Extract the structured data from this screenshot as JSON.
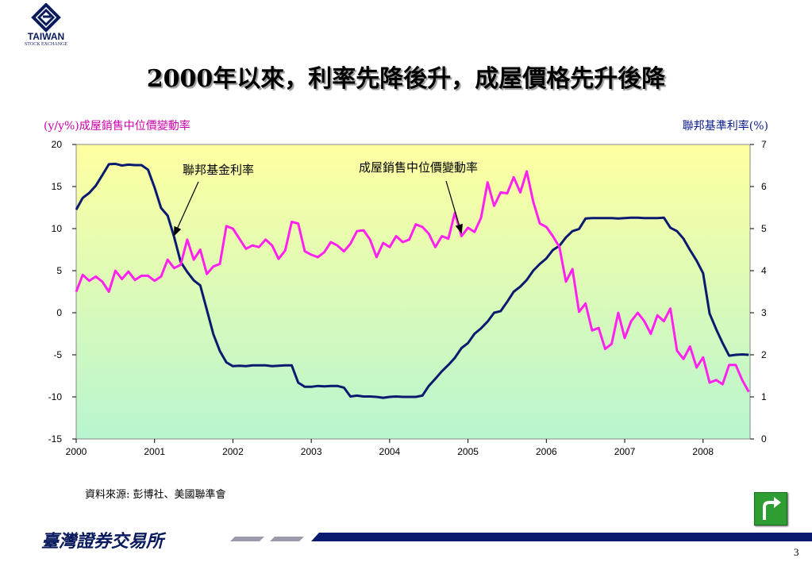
{
  "header": {
    "logo_name": "TAIWAN",
    "logo_sub": "STOCK EXCHANGE",
    "title": "2000年以來，利率先降後升，成屋價格先升後降"
  },
  "chart_data": {
    "type": "line",
    "left_axis_label": "(y/y%)成屋銷售中位價變動率",
    "right_axis_label": "聯邦基準利率(%)",
    "x_ticks": [
      "2000",
      "2001",
      "2002",
      "2003",
      "2004",
      "2005",
      "2006",
      "2007",
      "2008"
    ],
    "y_left_ticks": [
      "20",
      "15",
      "10",
      "5",
      "0",
      "-5",
      "-10",
      "-15"
    ],
    "y_right_ticks": [
      "7",
      "6",
      "5",
      "4",
      "3",
      "2",
      "1",
      "0"
    ],
    "ylim_left": [
      -15,
      20
    ],
    "ylim_right": [
      0,
      7
    ],
    "xlim": [
      2000,
      2008.6
    ],
    "annotations": [
      {
        "text": "聯邦基金利率",
        "target_series": "fed"
      },
      {
        "text": "成屋銷售中位價變動率",
        "target_series": "home"
      }
    ],
    "colors": {
      "fed": "#0a1a6e",
      "home": "#ff22ee",
      "plot_top": "#ffffa0",
      "plot_bottom": "#b8f5d0"
    },
    "series": [
      {
        "key": "fed",
        "axis": "right",
        "points": [
          [
            2000.0,
            5.45
          ],
          [
            2000.083,
            5.73
          ],
          [
            2000.167,
            5.85
          ],
          [
            2000.25,
            6.02
          ],
          [
            2000.333,
            6.27
          ],
          [
            2000.417,
            6.53
          ],
          [
            2000.5,
            6.54
          ],
          [
            2000.583,
            6.5
          ],
          [
            2000.667,
            6.52
          ],
          [
            2000.75,
            6.51
          ],
          [
            2000.833,
            6.51
          ],
          [
            2000.917,
            6.4
          ],
          [
            2001.0,
            5.98
          ],
          [
            2001.083,
            5.49
          ],
          [
            2001.167,
            5.31
          ],
          [
            2001.25,
            4.8
          ],
          [
            2001.333,
            4.21
          ],
          [
            2001.417,
            3.97
          ],
          [
            2001.5,
            3.77
          ],
          [
            2001.583,
            3.65
          ],
          [
            2001.667,
            3.07
          ],
          [
            2001.75,
            2.49
          ],
          [
            2001.833,
            2.09
          ],
          [
            2001.917,
            1.82
          ],
          [
            2002.0,
            1.73
          ],
          [
            2002.083,
            1.74
          ],
          [
            2002.167,
            1.73
          ],
          [
            2002.25,
            1.75
          ],
          [
            2002.333,
            1.75
          ],
          [
            2002.417,
            1.75
          ],
          [
            2002.5,
            1.73
          ],
          [
            2002.583,
            1.74
          ],
          [
            2002.667,
            1.75
          ],
          [
            2002.75,
            1.75
          ],
          [
            2002.833,
            1.34
          ],
          [
            2002.917,
            1.24
          ],
          [
            2003.0,
            1.24
          ],
          [
            2003.083,
            1.26
          ],
          [
            2003.167,
            1.25
          ],
          [
            2003.25,
            1.26
          ],
          [
            2003.333,
            1.26
          ],
          [
            2003.417,
            1.22
          ],
          [
            2003.5,
            1.01
          ],
          [
            2003.583,
            1.03
          ],
          [
            2003.667,
            1.01
          ],
          [
            2003.75,
            1.01
          ],
          [
            2003.833,
            1.0
          ],
          [
            2003.917,
            0.98
          ],
          [
            2004.0,
            1.0
          ],
          [
            2004.083,
            1.01
          ],
          [
            2004.167,
            1.0
          ],
          [
            2004.25,
            1.0
          ],
          [
            2004.333,
            1.0
          ],
          [
            2004.417,
            1.03
          ],
          [
            2004.5,
            1.26
          ],
          [
            2004.583,
            1.43
          ],
          [
            2004.667,
            1.61
          ],
          [
            2004.75,
            1.76
          ],
          [
            2004.833,
            1.93
          ],
          [
            2004.917,
            2.16
          ],
          [
            2005.0,
            2.28
          ],
          [
            2005.083,
            2.5
          ],
          [
            2005.167,
            2.63
          ],
          [
            2005.25,
            2.79
          ],
          [
            2005.333,
            3.0
          ],
          [
            2005.417,
            3.04
          ],
          [
            2005.5,
            3.26
          ],
          [
            2005.583,
            3.5
          ],
          [
            2005.667,
            3.62
          ],
          [
            2005.75,
            3.78
          ],
          [
            2005.833,
            4.0
          ],
          [
            2005.917,
            4.16
          ],
          [
            2006.0,
            4.29
          ],
          [
            2006.083,
            4.49
          ],
          [
            2006.167,
            4.59
          ],
          [
            2006.25,
            4.79
          ],
          [
            2006.333,
            4.94
          ],
          [
            2006.417,
            4.99
          ],
          [
            2006.5,
            5.24
          ],
          [
            2006.583,
            5.25
          ],
          [
            2006.667,
            5.25
          ],
          [
            2006.75,
            5.25
          ],
          [
            2006.833,
            5.25
          ],
          [
            2006.917,
            5.24
          ],
          [
            2007.0,
            5.25
          ],
          [
            2007.083,
            5.26
          ],
          [
            2007.167,
            5.26
          ],
          [
            2007.25,
            5.25
          ],
          [
            2007.333,
            5.25
          ],
          [
            2007.417,
            5.25
          ],
          [
            2007.5,
            5.26
          ],
          [
            2007.583,
            5.02
          ],
          [
            2007.667,
            4.94
          ],
          [
            2007.75,
            4.76
          ],
          [
            2007.833,
            4.49
          ],
          [
            2007.917,
            4.24
          ],
          [
            2008.0,
            3.94
          ],
          [
            2008.083,
            2.98
          ],
          [
            2008.167,
            2.61
          ],
          [
            2008.25,
            2.28
          ],
          [
            2008.333,
            1.98
          ],
          [
            2008.417,
            2.0
          ],
          [
            2008.5,
            2.01
          ],
          [
            2008.583,
            2.0
          ]
        ]
      },
      {
        "key": "home",
        "axis": "left",
        "points": [
          [
            2000.0,
            2.5
          ],
          [
            2000.083,
            4.5
          ],
          [
            2000.167,
            3.8
          ],
          [
            2000.25,
            4.3
          ],
          [
            2000.333,
            3.7
          ],
          [
            2000.417,
            2.5
          ],
          [
            2000.5,
            5.0
          ],
          [
            2000.583,
            4.0
          ],
          [
            2000.667,
            4.9
          ],
          [
            2000.75,
            3.9
          ],
          [
            2000.833,
            4.4
          ],
          [
            2000.917,
            4.4
          ],
          [
            2001.0,
            3.8
          ],
          [
            2001.083,
            4.3
          ],
          [
            2001.167,
            6.3
          ],
          [
            2001.25,
            5.3
          ],
          [
            2001.333,
            5.7
          ],
          [
            2001.417,
            8.7
          ],
          [
            2001.5,
            6.3
          ],
          [
            2001.583,
            7.5
          ],
          [
            2001.667,
            4.6
          ],
          [
            2001.75,
            5.5
          ],
          [
            2001.833,
            5.8
          ],
          [
            2001.917,
            10.3
          ],
          [
            2002.0,
            10.0
          ],
          [
            2002.083,
            8.8
          ],
          [
            2002.167,
            7.6
          ],
          [
            2002.25,
            8.0
          ],
          [
            2002.333,
            7.8
          ],
          [
            2002.417,
            8.7
          ],
          [
            2002.5,
            8.0
          ],
          [
            2002.583,
            6.4
          ],
          [
            2002.667,
            7.4
          ],
          [
            2002.75,
            10.8
          ],
          [
            2002.833,
            10.6
          ],
          [
            2002.917,
            7.3
          ],
          [
            2003.0,
            6.9
          ],
          [
            2003.083,
            6.6
          ],
          [
            2003.167,
            7.2
          ],
          [
            2003.25,
            8.4
          ],
          [
            2003.333,
            8.0
          ],
          [
            2003.417,
            7.3
          ],
          [
            2003.5,
            8.2
          ],
          [
            2003.583,
            9.7
          ],
          [
            2003.667,
            9.8
          ],
          [
            2003.75,
            8.7
          ],
          [
            2003.833,
            6.6
          ],
          [
            2003.917,
            8.3
          ],
          [
            2004.0,
            7.8
          ],
          [
            2004.083,
            9.1
          ],
          [
            2004.167,
            8.4
          ],
          [
            2004.25,
            8.7
          ],
          [
            2004.333,
            10.5
          ],
          [
            2004.417,
            10.2
          ],
          [
            2004.5,
            9.4
          ],
          [
            2004.583,
            7.8
          ],
          [
            2004.667,
            9.1
          ],
          [
            2004.75,
            8.8
          ],
          [
            2004.833,
            11.9
          ],
          [
            2004.917,
            9.1
          ],
          [
            2005.0,
            10.1
          ],
          [
            2005.083,
            9.6
          ],
          [
            2005.167,
            11.3
          ],
          [
            2005.25,
            15.5
          ],
          [
            2005.333,
            12.7
          ],
          [
            2005.417,
            14.3
          ],
          [
            2005.5,
            14.2
          ],
          [
            2005.583,
            16.1
          ],
          [
            2005.667,
            14.3
          ],
          [
            2005.75,
            16.8
          ],
          [
            2005.833,
            13.2
          ],
          [
            2005.917,
            10.6
          ],
          [
            2006.0,
            10.2
          ],
          [
            2006.083,
            9.1
          ],
          [
            2006.167,
            7.8
          ],
          [
            2006.25,
            3.7
          ],
          [
            2006.333,
            5.2
          ],
          [
            2006.417,
            0.1
          ],
          [
            2006.5,
            1.1
          ],
          [
            2006.583,
            -2.1
          ],
          [
            2006.667,
            -1.8
          ],
          [
            2006.75,
            -4.3
          ],
          [
            2006.833,
            -3.7
          ],
          [
            2006.917,
            0.0
          ],
          [
            2007.0,
            -3.0
          ],
          [
            2007.083,
            -1.0
          ],
          [
            2007.167,
            0.0
          ],
          [
            2007.25,
            -1.0
          ],
          [
            2007.333,
            -2.5
          ],
          [
            2007.417,
            -0.3
          ],
          [
            2007.5,
            -1.0
          ],
          [
            2007.583,
            0.5
          ],
          [
            2007.667,
            -4.5
          ],
          [
            2007.75,
            -5.5
          ],
          [
            2007.833,
            -4.0
          ],
          [
            2007.917,
            -6.5
          ],
          [
            2008.0,
            -5.3
          ],
          [
            2008.083,
            -8.3
          ],
          [
            2008.167,
            -8.0
          ],
          [
            2008.25,
            -8.5
          ],
          [
            2008.333,
            -6.2
          ],
          [
            2008.417,
            -6.2
          ],
          [
            2008.5,
            -8.0
          ],
          [
            2008.583,
            -9.4
          ]
        ]
      }
    ]
  },
  "source": "資料來源: 彭博社、美國聯準會",
  "footer": {
    "org_name": "臺灣證券交易所",
    "page_number": "3"
  },
  "nav": {
    "return_icon": "return-arrow-icon"
  }
}
